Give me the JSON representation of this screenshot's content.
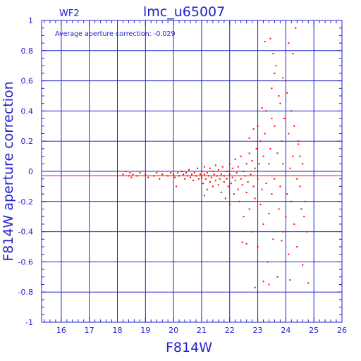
{
  "chart_data": {
    "type": "scatter",
    "chip_label": "WF2",
    "title": "lmc_u65007",
    "annotation": "Average aperture correction: -0.029",
    "xlabel": "F814W",
    "ylabel": "F814W aperture correction",
    "xlim": [
      15.3,
      26
    ],
    "ylim": [
      -1,
      1
    ],
    "x_ticks": [
      "16",
      "17",
      "18",
      "19",
      "20",
      "21",
      "22",
      "23",
      "24",
      "25",
      "26"
    ],
    "y_ticks": [
      "1",
      "0.8",
      "0.6",
      "0.4",
      "0.2",
      "0",
      "-0.2",
      "-0.4",
      "-0.6",
      "-0.8",
      "-1"
    ],
    "grid": true,
    "reference_lines": [
      {
        "y": 0,
        "color": "#2222cc"
      },
      {
        "y": -0.029,
        "color": "#ff0000"
      }
    ],
    "colors": {
      "axes": "#2222cc",
      "points": "#ff0000"
    },
    "points": [
      [
        18.2,
        -0.02
      ],
      [
        18.3,
        0.0
      ],
      [
        18.4,
        -0.03
      ],
      [
        18.45,
        -0.01
      ],
      [
        18.5,
        -0.04
      ],
      [
        18.55,
        -0.02
      ],
      [
        18.7,
        -0.03
      ],
      [
        18.8,
        -0.01
      ],
      [
        19.0,
        -0.02
      ],
      [
        19.1,
        -0.04
      ],
      [
        19.3,
        -0.03
      ],
      [
        19.4,
        -0.01
      ],
      [
        19.5,
        -0.05
      ],
      [
        19.6,
        -0.02
      ],
      [
        19.8,
        -0.03
      ],
      [
        19.9,
        -0.01
      ],
      [
        20.0,
        -0.02
      ],
      [
        20.05,
        -0.04
      ],
      [
        20.1,
        -0.1
      ],
      [
        20.15,
        -0.01
      ],
      [
        20.2,
        -0.03
      ],
      [
        20.3,
        0.0
      ],
      [
        20.35,
        -0.02
      ],
      [
        20.4,
        -0.05
      ],
      [
        20.45,
        -0.01
      ],
      [
        20.5,
        -0.03
      ],
      [
        20.55,
        0.01
      ],
      [
        20.6,
        -0.04
      ],
      [
        20.65,
        -0.02
      ],
      [
        20.7,
        -0.06
      ],
      [
        20.75,
        -0.01
      ],
      [
        20.8,
        -0.03
      ],
      [
        20.85,
        0.02
      ],
      [
        20.9,
        -0.05
      ],
      [
        20.95,
        -0.02
      ],
      [
        21.0,
        -0.04
      ],
      [
        21.0,
        0.0
      ],
      [
        21.05,
        -0.08
      ],
      [
        21.1,
        -0.02
      ],
      [
        21.1,
        0.03
      ],
      [
        21.15,
        -0.05
      ],
      [
        21.2,
        -0.01
      ],
      [
        21.2,
        -0.12
      ],
      [
        21.25,
        -0.03
      ],
      [
        21.3,
        0.02
      ],
      [
        21.3,
        -0.07
      ],
      [
        21.35,
        -0.04
      ],
      [
        21.4,
        0.0
      ],
      [
        21.4,
        -0.1
      ],
      [
        21.45,
        -0.02
      ],
      [
        21.5,
        -0.06
      ],
      [
        21.5,
        0.04
      ],
      [
        21.55,
        -0.03
      ],
      [
        21.6,
        -0.09
      ],
      [
        21.6,
        0.01
      ],
      [
        21.65,
        -0.05
      ],
      [
        21.7,
        -0.02
      ],
      [
        21.7,
        -0.14
      ],
      [
        21.75,
        0.03
      ],
      [
        21.8,
        -0.07
      ],
      [
        21.8,
        -0.03
      ],
      [
        21.85,
        -0.18
      ],
      [
        21.9,
        0.0
      ],
      [
        21.9,
        -0.05
      ],
      [
        21.95,
        -0.1
      ],
      [
        22.0,
        0.05
      ],
      [
        22.0,
        -0.02
      ],
      [
        22.0,
        -0.22
      ],
      [
        22.05,
        -0.08
      ],
      [
        22.1,
        0.02
      ],
      [
        22.1,
        -0.04
      ],
      [
        22.15,
        -0.15
      ],
      [
        22.2,
        0.08
      ],
      [
        22.2,
        -0.06
      ],
      [
        22.25,
        -0.01
      ],
      [
        22.3,
        -0.12
      ],
      [
        22.3,
        0.03
      ],
      [
        22.35,
        -0.2
      ],
      [
        22.4,
        -0.05
      ],
      [
        22.4,
        0.1
      ],
      [
        22.45,
        -0.09
      ],
      [
        22.5,
        0.0
      ],
      [
        22.5,
        -0.3
      ],
      [
        22.55,
        -0.03
      ],
      [
        22.6,
        0.05
      ],
      [
        22.6,
        -0.14
      ],
      [
        22.65,
        -0.07
      ],
      [
        22.7,
        0.12
      ],
      [
        22.7,
        -0.25
      ],
      [
        22.75,
        -0.02
      ],
      [
        22.8,
        0.07
      ],
      [
        22.8,
        -0.4
      ],
      [
        22.85,
        -0.1
      ],
      [
        22.9,
        0.02
      ],
      [
        22.9,
        -0.18
      ],
      [
        22.95,
        0.15
      ],
      [
        23.0,
        -0.05
      ],
      [
        23.0,
        0.3
      ],
      [
        23.0,
        -0.5
      ],
      [
        23.05,
        0.05
      ],
      [
        23.1,
        -0.22
      ],
      [
        23.1,
        0.2
      ],
      [
        23.15,
        -0.12
      ],
      [
        23.2,
        0.1
      ],
      [
        23.2,
        -0.35
      ],
      [
        23.25,
        0.25
      ],
      [
        23.3,
        -0.08
      ],
      [
        23.3,
        0.4
      ],
      [
        23.35,
        -0.6
      ],
      [
        23.4,
        0.05
      ],
      [
        23.4,
        -0.28
      ],
      [
        23.45,
        0.15
      ],
      [
        23.5,
        -0.15
      ],
      [
        23.5,
        0.55
      ],
      [
        23.55,
        -0.45
      ],
      [
        23.6,
        0.3
      ],
      [
        23.6,
        -0.05
      ],
      [
        23.65,
        0.7
      ],
      [
        23.7,
        -0.7
      ],
      [
        23.7,
        0.12
      ],
      [
        23.75,
        -0.25
      ],
      [
        23.8,
        0.45
      ],
      [
        23.8,
        -0.1
      ],
      [
        23.85,
        0.2
      ],
      [
        23.9,
        -0.4
      ],
      [
        23.9,
        0.05
      ],
      [
        23.95,
        0.35
      ],
      [
        24.0,
        -0.3
      ],
      [
        24.0,
        0.6
      ],
      [
        24.05,
        -0.15
      ],
      [
        24.1,
        0.25
      ],
      [
        24.1,
        -0.55
      ],
      [
        24.15,
        0.02
      ],
      [
        24.2,
        0.4
      ],
      [
        24.2,
        -0.2
      ],
      [
        24.25,
        0.1
      ],
      [
        24.3,
        -0.35
      ],
      [
        24.3,
        0.3
      ],
      [
        24.35,
        0.95
      ],
      [
        24.4,
        -0.05
      ],
      [
        24.4,
        -0.5
      ],
      [
        24.45,
        0.2
      ],
      [
        24.5,
        -0.1
      ],
      [
        24.5,
        0.1
      ],
      [
        24.55,
        -0.25
      ],
      [
        24.6,
        0.05
      ],
      [
        24.6,
        -0.62
      ],
      [
        24.65,
        -0.3
      ],
      [
        24.7,
        -0.2
      ],
      [
        24.75,
        -0.4
      ],
      [
        24.8,
        -0.74
      ],
      [
        23.25,
        0.86
      ],
      [
        23.45,
        0.88
      ],
      [
        23.6,
        0.65
      ],
      [
        23.55,
        0.78
      ],
      [
        24.1,
        0.85
      ],
      [
        24.25,
        0.78
      ],
      [
        23.2,
        -0.73
      ],
      [
        22.9,
        -0.77
      ],
      [
        23.4,
        -0.75
      ],
      [
        22.6,
        -0.48
      ],
      [
        22.45,
        -0.47
      ],
      [
        23.85,
        -0.46
      ],
      [
        24.15,
        -0.72
      ],
      [
        21.1,
        -0.16
      ],
      [
        20.0,
        -0.2
      ],
      [
        23.75,
        0.5
      ],
      [
        24.05,
        0.52
      ],
      [
        23.9,
        0.62
      ],
      [
        23.15,
        0.42
      ],
      [
        23.5,
        0.35
      ],
      [
        22.85,
        0.28
      ],
      [
        22.7,
        0.22
      ],
      [
        24.45,
        0.18
      ]
    ]
  }
}
